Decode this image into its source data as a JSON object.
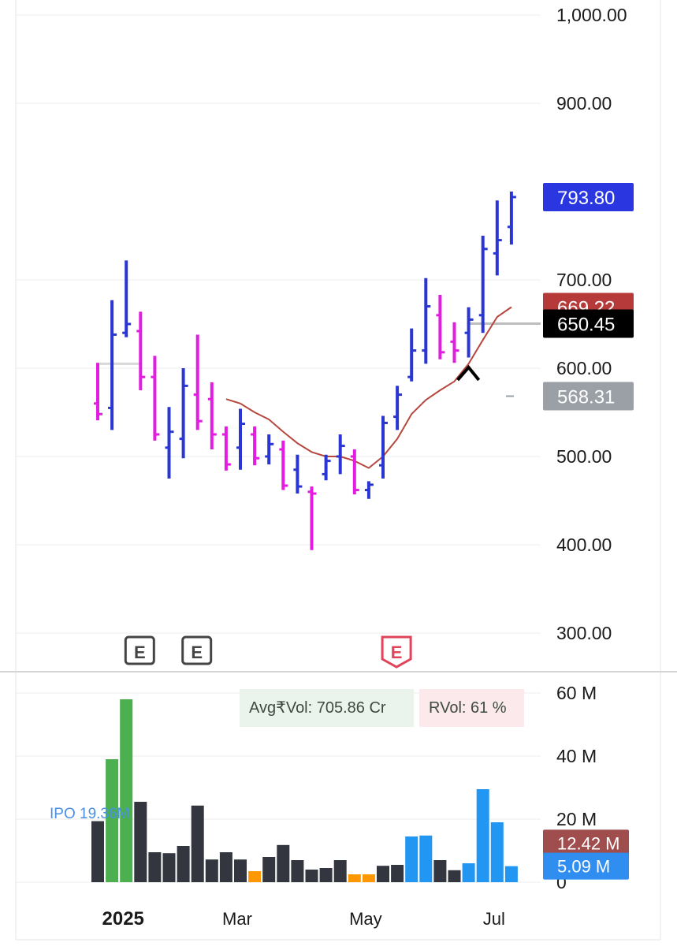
{
  "chart_data": {
    "type": "ohlc",
    "price_axis": {
      "ticks": [
        "1,000.00",
        "900.00",
        "700.00",
        "600.00",
        "500.00",
        "400.00",
        "300.00"
      ],
      "tick_values": [
        1000,
        900,
        700,
        600,
        500,
        400,
        300
      ],
      "range": [
        287,
        1005
      ]
    },
    "price_badges": [
      {
        "label": "793.80",
        "value": 793.8,
        "color": "#2a36e0",
        "text_color": "#ffffff"
      },
      {
        "label": "669.22",
        "value": 669.22,
        "color": "#b73a3a",
        "text_color": "#ffffff"
      },
      {
        "label": "650.45",
        "value": 650.45,
        "color": "#000000",
        "text_color": "#ffffff"
      },
      {
        "label": "568.31",
        "value": 568.31,
        "color": "#9aa0a6",
        "text_color": "#ffffff"
      }
    ],
    "bars": [
      {
        "o": 560,
        "h": 606,
        "l": 541,
        "c": 548,
        "color": "magenta"
      },
      {
        "o": 555,
        "h": 677,
        "l": 530,
        "c": 638,
        "color": "blue"
      },
      {
        "o": 640,
        "h": 722,
        "l": 635,
        "c": 650,
        "color": "blue"
      },
      {
        "o": 642,
        "h": 664,
        "l": 575,
        "c": 590,
        "color": "magenta"
      },
      {
        "o": 590,
        "h": 614,
        "l": 518,
        "c": 525,
        "color": "magenta"
      },
      {
        "o": 510,
        "h": 556,
        "l": 475,
        "c": 528,
        "color": "blue"
      },
      {
        "o": 520,
        "h": 600,
        "l": 498,
        "c": 580,
        "color": "blue"
      },
      {
        "o": 570,
        "h": 638,
        "l": 530,
        "c": 540,
        "color": "magenta"
      },
      {
        "o": 565,
        "h": 584,
        "l": 508,
        "c": 525,
        "color": "magenta"
      },
      {
        "o": 525,
        "h": 534,
        "l": 484,
        "c": 491,
        "color": "magenta"
      },
      {
        "o": 510,
        "h": 554,
        "l": 485,
        "c": 537,
        "color": "blue"
      },
      {
        "o": 525,
        "h": 534,
        "l": 490,
        "c": 498,
        "color": "magenta"
      },
      {
        "o": 500,
        "h": 525,
        "l": 491,
        "c": 514,
        "color": "blue"
      },
      {
        "o": 508,
        "h": 518,
        "l": 462,
        "c": 467,
        "color": "magenta"
      },
      {
        "o": 485,
        "h": 502,
        "l": 458,
        "c": 466,
        "color": "blue"
      },
      {
        "o": 460,
        "h": 466,
        "l": 394,
        "c": 458,
        "color": "magenta"
      },
      {
        "o": 480,
        "h": 502,
        "l": 473,
        "c": 495,
        "color": "blue"
      },
      {
        "o": 500,
        "h": 525,
        "l": 480,
        "c": 512,
        "color": "blue"
      },
      {
        "o": 500,
        "h": 508,
        "l": 457,
        "c": 462,
        "color": "magenta"
      },
      {
        "o": 462,
        "h": 472,
        "l": 452,
        "c": 468,
        "color": "blue"
      },
      {
        "o": 490,
        "h": 546,
        "l": 475,
        "c": 538,
        "color": "blue"
      },
      {
        "o": 545,
        "h": 580,
        "l": 530,
        "c": 570,
        "color": "blue"
      },
      {
        "o": 590,
        "h": 645,
        "l": 585,
        "c": 620,
        "color": "blue"
      },
      {
        "o": 620,
        "h": 702,
        "l": 605,
        "c": 670,
        "color": "blue"
      },
      {
        "o": 660,
        "h": 683,
        "l": 610,
        "c": 618,
        "color": "magenta"
      },
      {
        "o": 630,
        "h": 652,
        "l": 606,
        "c": 620,
        "color": "magenta"
      },
      {
        "o": 640,
        "h": 669,
        "l": 612,
        "c": 655,
        "color": "blue"
      },
      {
        "o": 660,
        "h": 750,
        "l": 640,
        "c": 735,
        "color": "blue"
      },
      {
        "o": 730,
        "h": 790,
        "l": 705,
        "c": 745,
        "color": "blue"
      },
      {
        "o": 760,
        "h": 800,
        "l": 740,
        "c": 793.8,
        "color": "blue"
      }
    ],
    "moving_average": [
      {
        "bar": 9,
        "value": 565
      },
      {
        "bar": 10,
        "value": 560
      },
      {
        "bar": 11,
        "value": 550
      },
      {
        "bar": 12,
        "value": 542
      },
      {
        "bar": 13,
        "value": 528
      },
      {
        "bar": 14,
        "value": 515
      },
      {
        "bar": 15,
        "value": 505
      },
      {
        "bar": 16,
        "value": 500
      },
      {
        "bar": 17,
        "value": 500
      },
      {
        "bar": 18,
        "value": 495
      },
      {
        "bar": 19,
        "value": 487
      },
      {
        "bar": 20,
        "value": 500
      },
      {
        "bar": 21,
        "value": 520
      },
      {
        "bar": 22,
        "value": 548
      },
      {
        "bar": 23,
        "value": 564
      },
      {
        "bar": 24,
        "value": 575
      },
      {
        "bar": 25,
        "value": 585
      },
      {
        "bar": 26,
        "value": 605
      },
      {
        "bar": 27,
        "value": 632
      },
      {
        "bar": 28,
        "value": 658
      },
      {
        "bar": 29,
        "value": 669.22
      }
    ],
    "reference_lines": [
      {
        "value": 605,
        "from_bar": 0,
        "to_bar": 3,
        "color": "#d9d9d9"
      },
      {
        "value": 650.45,
        "from_bar": 26,
        "to_bar": 33,
        "color": "#bdbdbd"
      }
    ],
    "earnings_markers": [
      {
        "label": "E",
        "bar": 3,
        "style": "outlined-dark"
      },
      {
        "label": "E",
        "bar": 7,
        "style": "outlined-dark"
      },
      {
        "label": "E",
        "bar": 21,
        "style": "outlined-red"
      }
    ],
    "volume": {
      "ticks": [
        "60 M",
        "40 M",
        "20 M",
        "0"
      ],
      "tick_values": [
        60,
        40,
        20,
        0
      ],
      "range": [
        0,
        60
      ],
      "unit": "M",
      "bars": [
        {
          "value": 19.36,
          "color": "dark"
        },
        {
          "value": 39,
          "color": "green"
        },
        {
          "value": 58,
          "color": "green"
        },
        {
          "value": 25.5,
          "color": "dark"
        },
        {
          "value": 9.5,
          "color": "dark"
        },
        {
          "value": 9.2,
          "color": "dark"
        },
        {
          "value": 11.5,
          "color": "dark"
        },
        {
          "value": 24.3,
          "color": "dark"
        },
        {
          "value": 7.2,
          "color": "dark"
        },
        {
          "value": 9.5,
          "color": "dark"
        },
        {
          "value": 7.2,
          "color": "dark"
        },
        {
          "value": 3.5,
          "color": "orange"
        },
        {
          "value": 8,
          "color": "dark"
        },
        {
          "value": 11.8,
          "color": "dark"
        },
        {
          "value": 7,
          "color": "dark"
        },
        {
          "value": 4,
          "color": "dark"
        },
        {
          "value": 4.5,
          "color": "dark"
        },
        {
          "value": 7,
          "color": "dark"
        },
        {
          "value": 2.5,
          "color": "orange"
        },
        {
          "value": 2.5,
          "color": "orange"
        },
        {
          "value": 5.2,
          "color": "dark"
        },
        {
          "value": 5.5,
          "color": "dark"
        },
        {
          "value": 14.5,
          "color": "blue"
        },
        {
          "value": 14.8,
          "color": "blue"
        },
        {
          "value": 7,
          "color": "dark"
        },
        {
          "value": 3.8,
          "color": "dark"
        },
        {
          "value": 6,
          "color": "blue"
        },
        {
          "value": 29.5,
          "color": "blue"
        },
        {
          "value": 19,
          "color": "blue"
        },
        {
          "value": 5.09,
          "color": "blue"
        }
      ],
      "badges": [
        {
          "label": "12.42 M",
          "value": 12.42,
          "color": "#a04d4d"
        },
        {
          "label": "5.09 M",
          "value": 5.09,
          "color": "#2f8ef0"
        }
      ]
    },
    "x_axis": {
      "labels": [
        {
          "label": "2025",
          "bar": 2,
          "bold": true
        },
        {
          "label": "Mar",
          "bar": 10,
          "bold": false
        },
        {
          "label": "May",
          "bar": 19,
          "bold": false
        },
        {
          "label": "Jul",
          "bar": 28,
          "bold": false
        }
      ]
    },
    "colors": {
      "up": "#2a36d4",
      "down": "#e21ce0",
      "ma": "#b5473f",
      "vol_dark": "#33363f",
      "vol_green": "#4caf50",
      "vol_orange": "#ff9800",
      "vol_blue": "#2196f3",
      "grid": "#ececec"
    },
    "grid": true
  },
  "info": {
    "avg_vol": "Avg₹Vol: 705.86 Cr",
    "rvol": "RVol: 61 %",
    "ipo": "IPO 19.36M"
  }
}
